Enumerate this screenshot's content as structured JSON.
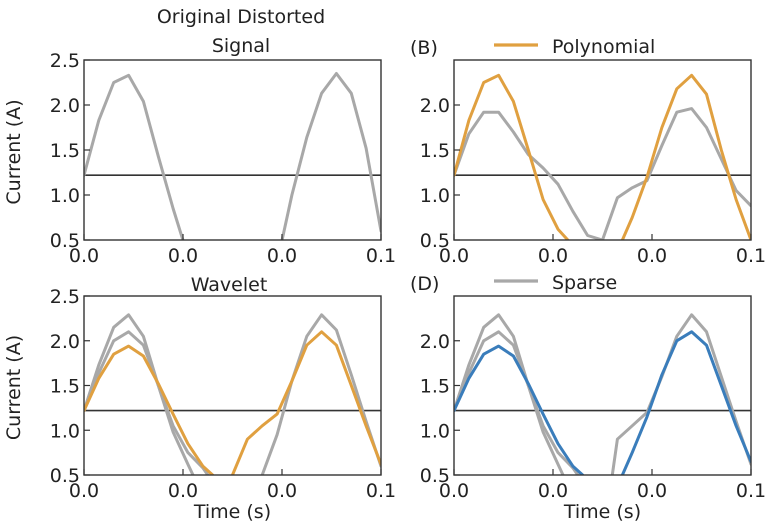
{
  "chart_data": [
    {
      "id": "A",
      "type": "line",
      "title_line1": "Original Distorted",
      "title_line2": "Signal",
      "panel_label": "",
      "legend": "",
      "xlabel": "",
      "ylabel": "Current (A)",
      "xlim": [
        0,
        1
      ],
      "ylim": [
        0.5,
        2.5
      ],
      "xticks": [
        "0.0",
        "0.0",
        "0.0",
        "0.1"
      ],
      "yticks": [
        "0.5",
        "1.0",
        "1.5",
        "2.0",
        "2.5"
      ],
      "hline": 1.22,
      "series": [
        {
          "color": "#a8a8a8",
          "x": [
            0.0,
            0.05,
            0.1,
            0.15,
            0.2,
            0.25,
            0.3,
            0.333
          ],
          "y": [
            1.22,
            1.83,
            2.25,
            2.33,
            2.04,
            1.43,
            0.85,
            0.5
          ]
        },
        {
          "color": "#a8a8a8",
          "x": [
            0.667,
            0.7,
            0.75,
            0.8,
            0.85,
            0.9,
            0.95,
            1.0
          ],
          "y": [
            0.5,
            1.0,
            1.64,
            2.13,
            2.35,
            2.13,
            1.52,
            0.6
          ]
        }
      ]
    },
    {
      "id": "B",
      "type": "line",
      "title_line1": "",
      "title_line2": "",
      "panel_label": "(B)",
      "legend": "Polynomial",
      "legend_color": "#e0a040",
      "xlabel": "",
      "ylabel": "",
      "xlim": [
        0,
        1
      ],
      "ylim": [
        0.5,
        2.5
      ],
      "xticks": [
        "0.0",
        "0.0",
        "0.0",
        "0.1"
      ],
      "yticks": [
        "0.5",
        "1.0",
        "1.5",
        "2.0"
      ],
      "hline": 1.22,
      "series": [
        {
          "color": "#a8a8a8",
          "x": [
            0.0,
            0.05,
            0.1,
            0.15,
            0.2,
            0.25,
            0.3,
            0.35,
            0.4,
            0.45,
            0.5
          ],
          "y": [
            1.22,
            1.68,
            1.92,
            1.92,
            1.7,
            1.45,
            1.3,
            1.12,
            0.82,
            0.55,
            0.5
          ]
        },
        {
          "color": "#a8a8a8",
          "x": [
            0.5,
            0.55,
            0.6,
            0.65,
            0.7,
            0.75,
            0.8,
            0.85,
            0.9,
            0.95,
            1.0
          ],
          "y": [
            0.5,
            0.97,
            1.08,
            1.16,
            1.55,
            1.92,
            1.96,
            1.75,
            1.4,
            1.05,
            0.88
          ]
        },
        {
          "color": "#e0a040",
          "x": [
            0.0,
            0.05,
            0.1,
            0.15,
            0.2,
            0.25,
            0.3,
            0.35,
            0.383
          ],
          "y": [
            1.22,
            1.83,
            2.25,
            2.33,
            2.04,
            1.5,
            0.95,
            0.62,
            0.5
          ]
        },
        {
          "color": "#e0a040",
          "x": [
            0.567,
            0.6,
            0.65,
            0.7,
            0.75,
            0.8,
            0.85,
            0.9,
            0.95,
            1.0
          ],
          "y": [
            0.5,
            0.75,
            1.2,
            1.75,
            2.18,
            2.33,
            2.12,
            1.5,
            0.95,
            0.5
          ]
        }
      ]
    },
    {
      "id": "C",
      "type": "line",
      "title_line1": "Wavelet",
      "title_line2": "",
      "panel_label": "",
      "legend": "",
      "xlabel": "Time (s)",
      "ylabel": "Current (A)",
      "xlim": [
        0,
        1
      ],
      "ylim": [
        0.5,
        2.5
      ],
      "xticks": [
        "0.0",
        "0.0",
        "0.0",
        "0.1"
      ],
      "yticks": [
        "0.5",
        "1.0",
        "1.5",
        "2.0",
        "2.5"
      ],
      "hline": 1.22,
      "series": [
        {
          "color": "#a8a8a8",
          "x": [
            0.0,
            0.05,
            0.1,
            0.15,
            0.2,
            0.25,
            0.3,
            0.35,
            0.367
          ],
          "y": [
            1.22,
            1.73,
            2.15,
            2.29,
            2.05,
            1.5,
            0.98,
            0.62,
            0.5
          ]
        },
        {
          "color": "#a8a8a8",
          "x": [
            0.0,
            0.05,
            0.1,
            0.15,
            0.2,
            0.25,
            0.3,
            0.35,
            0.4,
            0.417
          ],
          "y": [
            1.22,
            1.64,
            2.0,
            2.1,
            1.95,
            1.5,
            1.05,
            0.75,
            0.58,
            0.5
          ]
        },
        {
          "color": "#e0a040",
          "x": [
            0.0,
            0.05,
            0.1,
            0.15,
            0.2,
            0.25,
            0.3,
            0.35,
            0.4,
            0.433
          ],
          "y": [
            1.22,
            1.58,
            1.85,
            1.94,
            1.83,
            1.52,
            1.18,
            0.85,
            0.6,
            0.5
          ]
        },
        {
          "color": "#a8a8a8",
          "x": [
            0.6,
            0.65,
            0.7,
            0.75,
            0.8,
            0.85,
            0.9,
            0.95,
            1.0
          ],
          "y": [
            0.5,
            0.95,
            1.55,
            2.05,
            2.29,
            2.12,
            1.62,
            1.1,
            0.6
          ]
        },
        {
          "color": "#e0a040",
          "x": [
            0.5,
            0.55,
            0.6,
            0.65,
            0.7,
            0.75,
            0.8,
            0.85,
            0.9,
            0.95,
            1.0
          ],
          "y": [
            0.5,
            0.9,
            1.05,
            1.18,
            1.55,
            1.95,
            2.1,
            1.95,
            1.5,
            1.05,
            0.62
          ]
        }
      ]
    },
    {
      "id": "D",
      "type": "line",
      "title_line1": "",
      "title_line2": "",
      "panel_label": "(D)",
      "legend": "Sparse",
      "legend_color": "#a8a8a8",
      "xlabel": "Time (s)",
      "ylabel": "",
      "xlim": [
        0,
        1
      ],
      "ylim": [
        0.5,
        2.5
      ],
      "xticks": [
        "0.0",
        "0.0",
        "0.0",
        "0.1"
      ],
      "yticks": [
        "0.5",
        "1.0",
        "1.5",
        "2.0"
      ],
      "hline": 1.22,
      "series": [
        {
          "color": "#a8a8a8",
          "x": [
            0.0,
            0.05,
            0.1,
            0.15,
            0.2,
            0.25,
            0.3,
            0.35,
            0.367
          ],
          "y": [
            1.22,
            1.73,
            2.15,
            2.29,
            2.05,
            1.5,
            0.98,
            0.62,
            0.5
          ]
        },
        {
          "color": "#a8a8a8",
          "x": [
            0.0,
            0.05,
            0.1,
            0.15,
            0.2,
            0.25,
            0.3,
            0.35,
            0.4,
            0.417
          ],
          "y": [
            1.22,
            1.64,
            2.0,
            2.1,
            1.95,
            1.5,
            1.05,
            0.75,
            0.58,
            0.5
          ]
        },
        {
          "color": "#3a7dbb",
          "x": [
            0.0,
            0.05,
            0.1,
            0.15,
            0.2,
            0.25,
            0.3,
            0.35,
            0.4,
            0.433
          ],
          "y": [
            1.22,
            1.58,
            1.85,
            1.94,
            1.83,
            1.52,
            1.18,
            0.85,
            0.6,
            0.5
          ]
        },
        {
          "color": "#a8a8a8",
          "x": [
            0.533,
            0.55,
            0.6,
            0.65,
            0.7,
            0.75,
            0.8,
            0.85,
            0.9,
            0.95,
            1.0
          ],
          "y": [
            0.5,
            0.9,
            1.05,
            1.2,
            1.6,
            2.05,
            2.29,
            2.1,
            1.6,
            1.1,
            0.62
          ]
        },
        {
          "color": "#3a7dbb",
          "x": [
            0.567,
            0.6,
            0.65,
            0.7,
            0.75,
            0.8,
            0.85,
            0.9,
            0.95,
            1.0
          ],
          "y": [
            0.5,
            0.75,
            1.15,
            1.62,
            2.0,
            2.1,
            1.95,
            1.5,
            1.05,
            0.65
          ]
        }
      ]
    }
  ]
}
